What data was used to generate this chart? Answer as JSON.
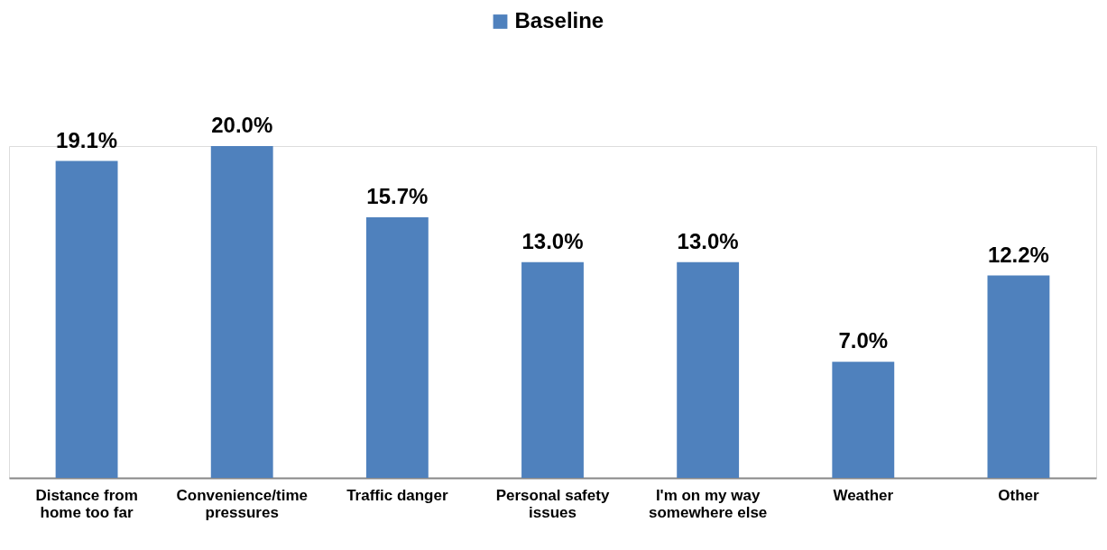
{
  "chart_data": {
    "type": "bar",
    "categories": [
      "Distance from home too far",
      "Convenience/time pressures",
      "Traffic danger",
      "Personal safety issues",
      "I'm on my way somewhere else",
      "Weather",
      "Other"
    ],
    "series": [
      {
        "name": "Baseline",
        "color": "#4f81bd",
        "values": [
          19.1,
          20.0,
          15.7,
          13.0,
          13.0,
          7.0,
          12.2
        ],
        "value_labels": [
          "19.1%",
          "20.0%",
          "15.7%",
          "13.0%",
          "13.0%",
          "7.0%",
          "12.2%"
        ]
      }
    ],
    "legend": "top",
    "grid": false
  }
}
